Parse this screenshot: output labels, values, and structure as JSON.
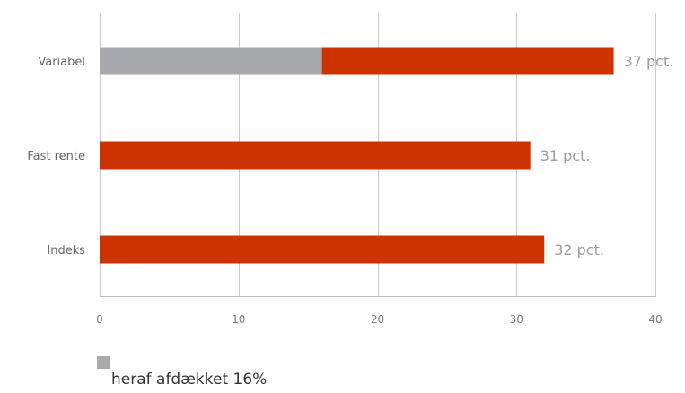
{
  "chart_data": {
    "type": "bar",
    "orientation": "horizontal",
    "stacked": true,
    "categories": [
      "Variabel",
      "Fast rente",
      "Indeks"
    ],
    "totals": [
      37,
      31,
      32
    ],
    "series": [
      {
        "name": "heraf afdækket 16%",
        "values": [
          16,
          0,
          0
        ],
        "color": "#a7a9ac"
      },
      {
        "values": [
          21,
          31,
          32
        ],
        "color": "#cc3300"
      }
    ],
    "value_labels": [
      "37 pct.",
      "31 pct.",
      "32 pct."
    ],
    "xlim": [
      0,
      40
    ],
    "xticks": [
      0,
      10,
      20,
      30,
      40
    ],
    "grid": true,
    "legend_position": "bottom-left",
    "title": "",
    "xlabel": "",
    "ylabel": ""
  },
  "legend": {
    "label": "heraf afdækket 16%",
    "color": "#a7a9ac"
  }
}
